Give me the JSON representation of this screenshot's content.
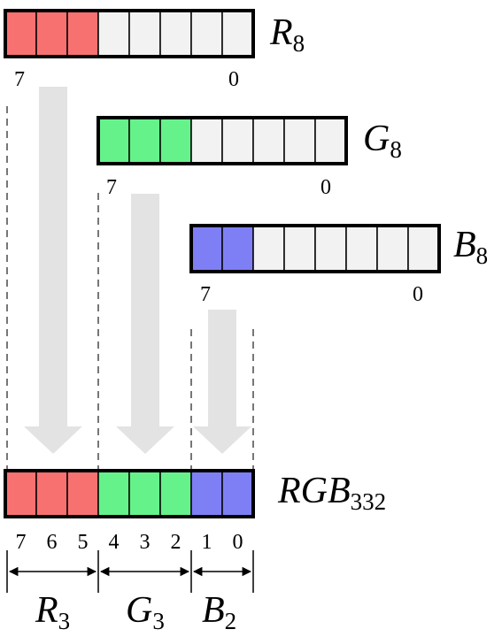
{
  "colors": {
    "red": "#f87171",
    "green": "#66f28b",
    "blue": "#7f7ff5",
    "empty": "#f2f2f2",
    "arrow": "#e3e3e3",
    "border": "#000000"
  },
  "registers": {
    "r8": {
      "main": "R",
      "sub": "8",
      "msb": "7",
      "lsb": "0",
      "filled": 3
    },
    "g8": {
      "main": "G",
      "sub": "8",
      "msb": "7",
      "lsb": "0",
      "filled": 3
    },
    "b8": {
      "main": "B",
      "sub": "8",
      "msb": "7",
      "lsb": "0",
      "filled": 2
    }
  },
  "output": {
    "main": "RGB",
    "sub": "332",
    "bits": [
      "7",
      "6",
      "5",
      "4",
      "3",
      "2",
      "1",
      "0"
    ],
    "groups": [
      {
        "main": "R",
        "sub": "3"
      },
      {
        "main": "G",
        "sub": "3"
      },
      {
        "main": "B",
        "sub": "2"
      }
    ]
  }
}
